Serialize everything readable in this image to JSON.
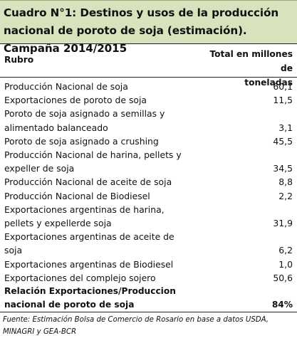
{
  "title": "Cuadro N°1: Destinos y usos de la producción nacional de poroto de soja (estimación). Campaña 2014/2015",
  "header": {
    "rubro": "Rubro",
    "total_line1": "Total en millones de",
    "total_line2": "toneladas"
  },
  "rows": [
    {
      "label": "Producción Nacional de soja",
      "value": "60,1"
    },
    {
      "label": "Exportaciones de poroto de soja",
      "value": "11,5"
    },
    {
      "label": "Poroto de soja asignado a semillas y",
      "label2": "alimentado balanceado",
      "value": "3,1"
    },
    {
      "label": "Poroto de soja asignado a crushing",
      "value": "45,5"
    },
    {
      "label": "Producción Nacional de harina, pellets y",
      "label2": "expeller de soja",
      "value": "34,5"
    },
    {
      "label": "Producción Nacional de aceite de soja",
      "value": "8,8"
    },
    {
      "label": "Producción Nacional de Biodiesel",
      "value": "2,2"
    },
    {
      "label": "Exportaciones argentinas de harina,",
      "label2": "pellets y expellerde soja",
      "value": "31,9"
    },
    {
      "label": "Exportaciones argentinas de aceite de",
      "label2": "soja",
      "value": "6,2"
    },
    {
      "label": "Exportaciones argentinas de Biodiesel",
      "value": "1,0"
    },
    {
      "label": "Exportaciones del complejo sojero",
      "value": "50,6"
    }
  ],
  "summary": {
    "label": "Relación Exportaciones/Produccion",
    "label2": "nacional de poroto de soja",
    "value": "84%"
  },
  "source": "Fuente: Estimación Bolsa de Comercio de Rosario en base a datos USDA, MINAGRI y GEA-BCR"
}
